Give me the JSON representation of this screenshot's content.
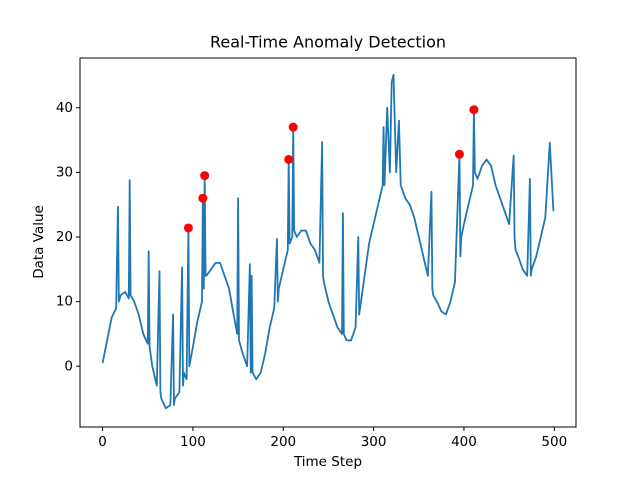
{
  "chart_data": {
    "type": "line",
    "title": "Real-Time Anomaly Detection",
    "xlabel": "Time Step",
    "ylabel": "Data Value",
    "xlim": [
      -25,
      524
    ],
    "ylim": [
      -9.4,
      47.7
    ],
    "xticks": [
      0,
      100,
      200,
      300,
      400,
      500
    ],
    "yticks": [
      0,
      10,
      20,
      30,
      40
    ],
    "series": [
      {
        "type": "line",
        "color": "#1f77b4",
        "x": [
          0,
          5,
          10,
          15,
          17,
          18,
          20,
          25,
          29,
          30,
          31,
          35,
          40,
          45,
          50,
          51,
          52,
          55,
          60,
          63,
          64,
          65,
          70,
          75,
          78,
          79,
          80,
          85,
          88,
          89,
          90,
          93,
          95,
          96,
          100,
          105,
          110,
          111,
          112,
          113,
          114,
          115,
          120,
          125,
          130,
          135,
          140,
          145,
          149,
          150,
          151,
          155,
          160,
          163,
          164,
          165,
          166,
          170,
          175,
          180,
          185,
          190,
          193,
          194,
          195,
          200,
          205,
          206,
          207,
          210,
          211,
          212,
          215,
          220,
          225,
          230,
          235,
          240,
          243,
          244,
          245,
          250,
          255,
          260,
          265,
          266,
          267,
          270,
          275,
          280,
          283,
          284,
          285,
          290,
          295,
          300,
          305,
          310,
          311,
          312,
          315,
          318,
          320,
          322,
          325,
          328,
          330,
          335,
          340,
          345,
          350,
          355,
          360,
          364,
          365,
          366,
          370,
          375,
          380,
          385,
          390,
          395,
          396,
          397,
          400,
          405,
          410,
          411,
          412,
          415,
          420,
          425,
          430,
          435,
          440,
          445,
          450,
          455,
          456,
          457,
          460,
          465,
          470,
          473,
          474,
          475,
          480,
          485,
          490,
          495,
          499
        ],
        "values": [
          0.5,
          4,
          7.5,
          9,
          24.7,
          10,
          11,
          11.5,
          10.5,
          28.8,
          11,
          10,
          8,
          5,
          3.5,
          17.8,
          3,
          0,
          -3,
          14.7,
          -4,
          -5,
          -6.5,
          -6,
          8,
          -6,
          -5,
          -4,
          15.3,
          -3,
          -1,
          -2,
          21.4,
          0,
          3,
          7,
          10,
          26,
          12,
          29.5,
          14,
          14,
          15,
          16,
          16,
          14,
          12,
          8,
          5,
          26,
          4,
          2,
          0,
          15.8,
          -1,
          14,
          -1,
          -2,
          -1,
          2,
          6,
          9,
          19.7,
          10,
          12,
          15,
          18,
          32,
          19,
          20,
          37,
          21,
          20,
          21,
          21,
          19,
          18,
          16,
          34.7,
          14,
          13,
          10,
          8,
          6,
          5,
          23.7,
          5,
          4,
          4,
          6,
          20,
          8,
          9,
          14,
          19,
          22,
          25,
          28,
          37,
          28,
          40,
          30,
          44,
          45.1,
          30,
          38,
          28,
          26,
          25,
          23,
          20,
          17,
          14,
          27,
          12,
          11,
          10,
          8.5,
          8,
          10,
          13,
          32.8,
          17,
          20,
          22,
          25,
          28,
          39.7,
          30,
          29,
          31,
          32,
          31,
          28,
          26,
          24,
          22,
          32.6,
          20,
          18,
          17,
          15,
          14,
          29,
          14,
          15,
          17,
          20,
          23,
          34.6,
          24
        ]
      },
      {
        "type": "scatter",
        "color": "#ff0000",
        "x": [
          95,
          111,
          113,
          206,
          211,
          395,
          411
        ],
        "values": [
          21.4,
          26,
          29.5,
          32,
          37,
          32.8,
          39.7
        ]
      }
    ]
  }
}
